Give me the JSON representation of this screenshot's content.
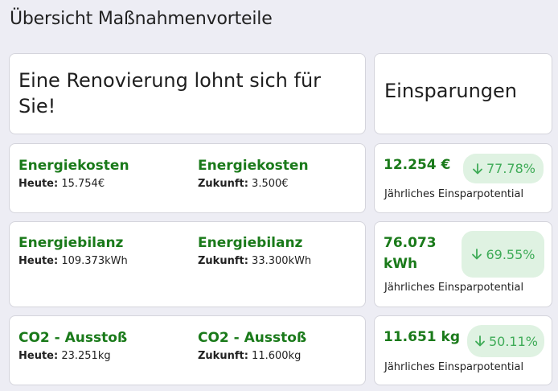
{
  "page": {
    "title": "Übersicht Maßnahmenvorteile"
  },
  "hero": {
    "left_text": "Eine Renovierung lohnt sich für Sie!",
    "right_text": "Einsparungen"
  },
  "rows": [
    {
      "title_today": "Energiekosten",
      "label_today": "Heute:",
      "value_today": "15.754€",
      "title_future": "Energiekosten",
      "label_future": "Zukunft:",
      "value_future": "3.500€",
      "saving_value": "12.254 €",
      "saving_percent": "77.78%",
      "saving_caption": "Jährliches Einsparpotential"
    },
    {
      "title_today": "Energiebilanz",
      "label_today": "Heute:",
      "value_today": "109.373kWh",
      "title_future": "Energiebilanz",
      "label_future": "Zukunft:",
      "value_future": "33.300kWh",
      "saving_value": "76.073 kWh",
      "saving_percent": "69.55%",
      "saving_caption": "Jährliches Einsparpotential"
    },
    {
      "title_today": "CO2 - Ausstoß",
      "label_today": "Heute:",
      "value_today": "23.251kg",
      "title_future": "CO2 - Ausstoß",
      "label_future": "Zukunft:",
      "value_future": "11.600kg",
      "saving_value": "11.651 kg",
      "saving_percent": "50.11%",
      "saving_caption": "Jährliches Einsparpotential"
    }
  ],
  "icons": {
    "badge_icon": "arrow-down-icon"
  },
  "colors": {
    "accent_green": "#1a7a1a",
    "badge_bg": "#dff2e2",
    "badge_text": "#3eab57",
    "page_bg": "#ededf4"
  }
}
